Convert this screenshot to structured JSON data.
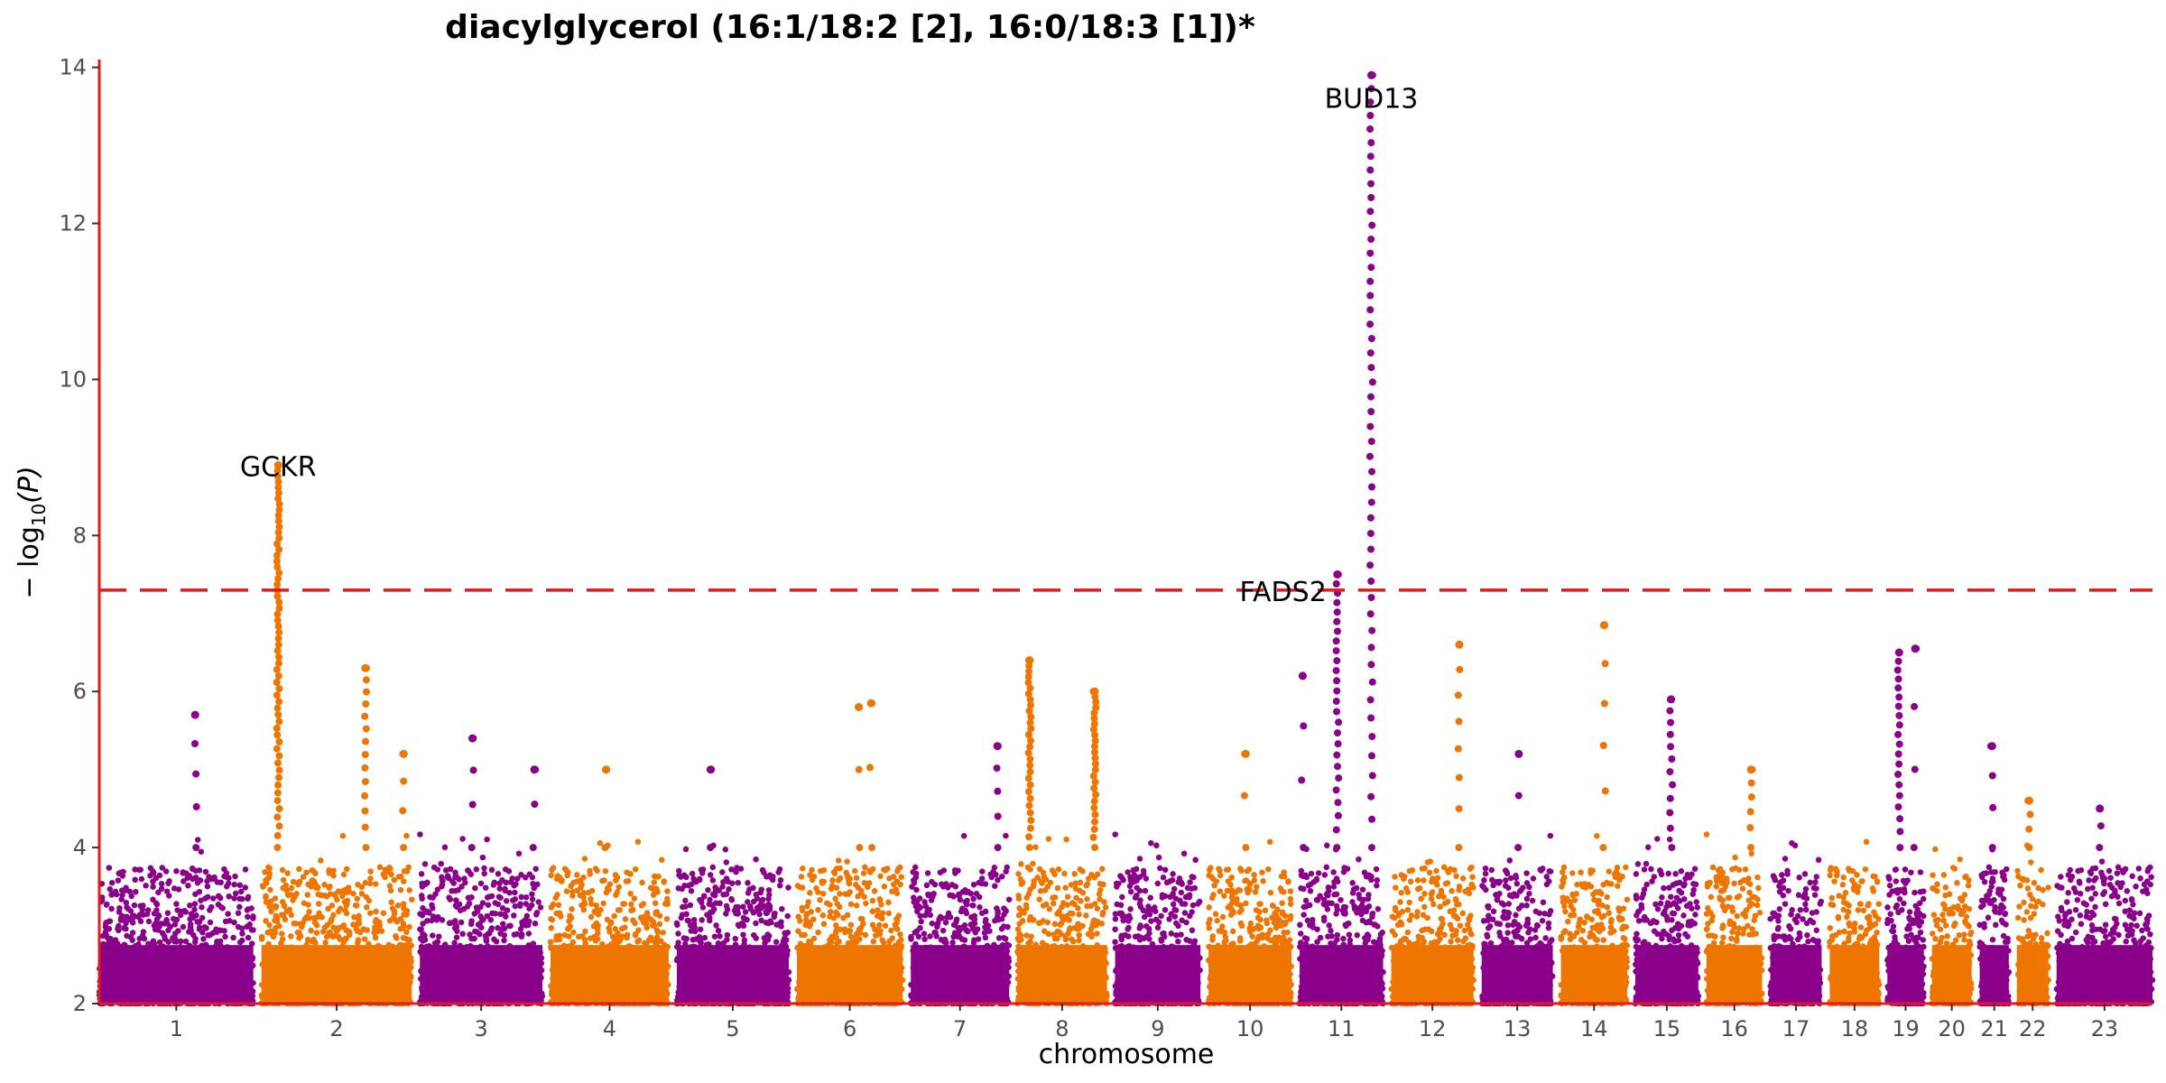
{
  "chart_data": {
    "type": "scatter",
    "subtype": "manhattan",
    "title": "diacylglycerol (16:1/18:2 [2], 16:0/18:3 [1])*",
    "xlabel": "chromosome",
    "ylabel_main": "− log",
    "ylabel_sub": "10",
    "ylabel_var": "(P)",
    "ylim": [
      2,
      14.1
    ],
    "yticks": [
      2,
      4,
      6,
      8,
      10,
      12,
      14
    ],
    "threshold": 7.3,
    "colors": {
      "odd": "#8b008b",
      "even": "#ee7600",
      "axis": "#e31a1c",
      "threshold": "#e31a1c"
    },
    "chromosomes": [
      {
        "label": "1",
        "size": 249
      },
      {
        "label": "2",
        "size": 243
      },
      {
        "label": "3",
        "size": 198
      },
      {
        "label": "4",
        "size": 191
      },
      {
        "label": "5",
        "size": 181
      },
      {
        "label": "6",
        "size": 171
      },
      {
        "label": "7",
        "size": 159
      },
      {
        "label": "8",
        "size": 145
      },
      {
        "label": "9",
        "size": 138
      },
      {
        "label": "10",
        "size": 134
      },
      {
        "label": "11",
        "size": 135
      },
      {
        "label": "12",
        "size": 133
      },
      {
        "label": "13",
        "size": 115
      },
      {
        "label": "14",
        "size": 107
      },
      {
        "label": "15",
        "size": 102
      },
      {
        "label": "16",
        "size": 90
      },
      {
        "label": "17",
        "size": 83
      },
      {
        "label": "18",
        "size": 80
      },
      {
        "label": "19",
        "size": 59
      },
      {
        "label": "20",
        "size": 64
      },
      {
        "label": "21",
        "size": 47
      },
      {
        "label": "22",
        "size": 51
      },
      {
        "label": "23",
        "size": 155
      }
    ],
    "peaks": [
      {
        "chr": "1",
        "pos": 155,
        "max": 5.7,
        "n": 5
      },
      {
        "chr": "2",
        "pos": 27,
        "max": 8.9,
        "n": 60
      },
      {
        "chr": "2",
        "pos": 168,
        "max": 6.3,
        "n": 14
      },
      {
        "chr": "2",
        "pos": 230,
        "max": 5.2,
        "n": 4
      },
      {
        "chr": "3",
        "pos": 85,
        "max": 5.4,
        "n": 4
      },
      {
        "chr": "3",
        "pos": 185,
        "max": 5.0,
        "n": 3
      },
      {
        "chr": "4",
        "pos": 90,
        "max": 5.0,
        "n": 2
      },
      {
        "chr": "5",
        "pos": 55,
        "max": 5.0,
        "n": 2
      },
      {
        "chr": "6",
        "pos": 100,
        "max": 5.8,
        "n": 3
      },
      {
        "chr": "6",
        "pos": 120,
        "max": 5.85,
        "n": 3
      },
      {
        "chr": "7",
        "pos": 140,
        "max": 5.3,
        "n": 5
      },
      {
        "chr": "8",
        "pos": 20,
        "max": 6.4,
        "n": 30
      },
      {
        "chr": "8",
        "pos": 125,
        "max": 6.0,
        "n": 26
      },
      {
        "chr": "10",
        "pos": 60,
        "max": 5.2,
        "n": 3
      },
      {
        "chr": "11",
        "pos": 5,
        "max": 6.2,
        "n": 4
      },
      {
        "chr": "11",
        "pos": 61,
        "max": 7.5,
        "n": 26
      },
      {
        "chr": "11",
        "pos": 116,
        "max": 13.9,
        "n": 50
      },
      {
        "chr": "12",
        "pos": 110,
        "max": 6.6,
        "n": 8
      },
      {
        "chr": "13",
        "pos": 60,
        "max": 5.2,
        "n": 3
      },
      {
        "chr": "14",
        "pos": 70,
        "max": 6.85,
        "n": 6
      },
      {
        "chr": "15",
        "pos": 58,
        "max": 5.9,
        "n": 12
      },
      {
        "chr": "16",
        "pos": 72,
        "max": 5.0,
        "n": 6
      },
      {
        "chr": "19",
        "pos": 19,
        "max": 6.5,
        "n": 20
      },
      {
        "chr": "19",
        "pos": 45,
        "max": 6.55,
        "n": 4
      },
      {
        "chr": "21",
        "pos": 20,
        "max": 5.3,
        "n": 4
      },
      {
        "chr": "22",
        "pos": 20,
        "max": 4.6,
        "n": 4
      },
      {
        "chr": "23",
        "pos": 70,
        "max": 4.5,
        "n": 3
      }
    ],
    "annotations": [
      {
        "label": "GCKR",
        "chr": "2",
        "pos": 27,
        "y": 8.9
      },
      {
        "label": "FADS2",
        "chr": "11",
        "pos": 61,
        "y": 7.3
      },
      {
        "label": "BUD13",
        "chr": "11",
        "pos": 116,
        "y": 13.9
      }
    ]
  }
}
